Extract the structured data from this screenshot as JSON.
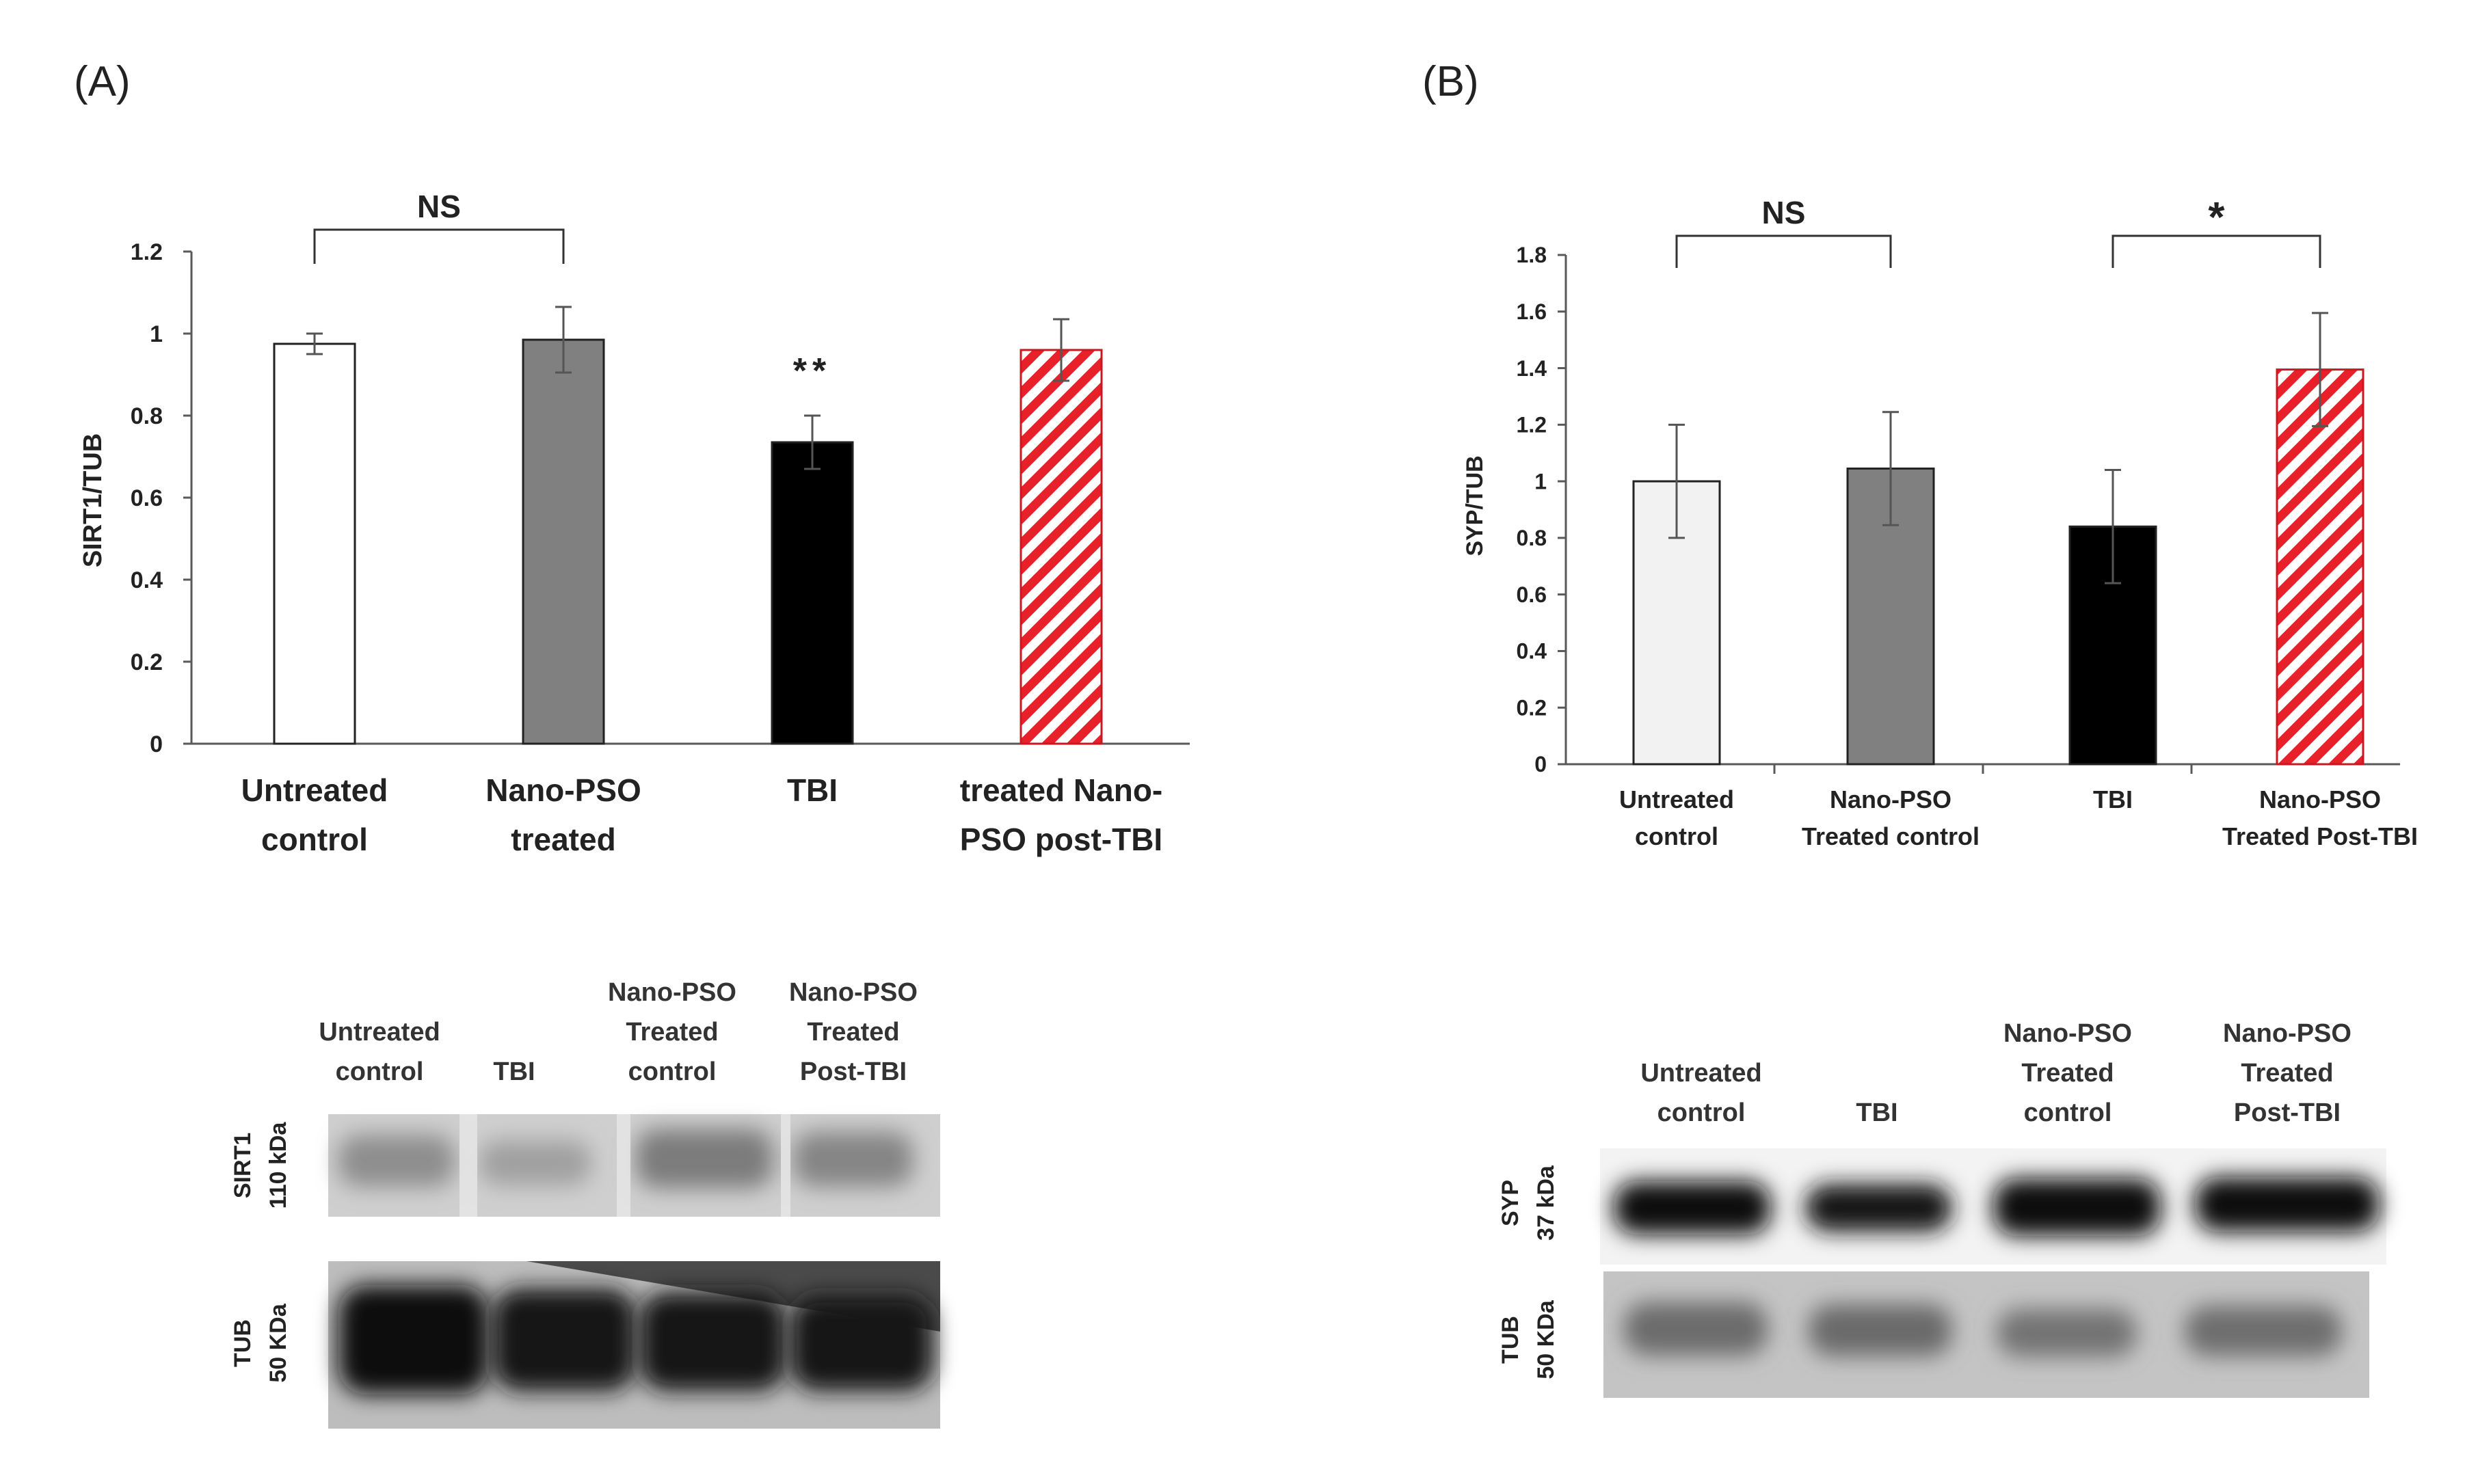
{
  "chart_data": [
    {
      "panel_label": "(A)",
      "type": "bar",
      "ylabel": "SIRT1/TUB",
      "ylim": [
        0,
        1.2
      ],
      "y_ticks": [
        "0",
        "0.2",
        "0.4",
        "0.6",
        "0.8",
        "1",
        "1.2"
      ],
      "categories": [
        [
          "Untreated",
          "control"
        ],
        [
          "Nano-PSO",
          "treated"
        ],
        [
          "TBI"
        ],
        [
          "treated Nano-",
          "PSO post-TBI"
        ]
      ],
      "values": [
        0.975,
        0.985,
        0.735,
        0.96
      ],
      "errors": [
        0.025,
        0.08,
        0.065,
        0.075
      ],
      "bar_styles": [
        "white",
        "gray",
        "black",
        "red-hatch"
      ],
      "annotations": [
        {
          "text": "NS",
          "type": "bracket",
          "from": 0,
          "to": 1
        },
        {
          "text": "**",
          "type": "above",
          "at": 2
        }
      ],
      "blot": {
        "lane_labels": [
          [
            "Untreated",
            "control"
          ],
          [
            "TBI"
          ],
          [
            "Nano-PSO",
            "Treated",
            "control"
          ],
          [
            "Nano-PSO",
            "Treated",
            "Post-TBI"
          ]
        ],
        "rows": [
          {
            "protein": "SIRT1",
            "size": "110 kDa"
          },
          {
            "protein": "TUB",
            "size": "50 KDa"
          }
        ]
      }
    },
    {
      "panel_label": "(B)",
      "type": "bar",
      "ylabel": "SYP/TUB",
      "ylim": [
        0,
        1.8
      ],
      "y_ticks": [
        "0",
        "0.2",
        "0.4",
        "0.6",
        "0.8",
        "1",
        "1.2",
        "1.4",
        "1.6",
        "1.8"
      ],
      "categories": [
        [
          "Untreated",
          "control"
        ],
        [
          "Nano-PSO",
          "Treated control"
        ],
        [
          "TBI"
        ],
        [
          "Nano-PSO",
          "Treated Post-TBI"
        ]
      ],
      "values": [
        1.0,
        1.045,
        0.84,
        1.395
      ],
      "errors": [
        0.2,
        0.2,
        0.2,
        0.2
      ],
      "bar_styles": [
        "lightgray",
        "gray",
        "black",
        "red-hatch"
      ],
      "annotations": [
        {
          "text": "NS",
          "type": "bracket",
          "from": 0,
          "to": 1
        },
        {
          "text": "*",
          "type": "bracket",
          "from": 2,
          "to": 3
        }
      ],
      "blot": {
        "lane_labels": [
          [
            "Untreated",
            "control"
          ],
          [
            "TBI"
          ],
          [
            "Nano-PSO",
            "Treated",
            "control"
          ],
          [
            "Nano-PSO",
            "Treated",
            "Post-TBI"
          ]
        ],
        "rows": [
          {
            "protein": "SYP",
            "size": "37 kDa"
          },
          {
            "protein": "TUB",
            "size": "50 KDa"
          }
        ]
      }
    }
  ],
  "colors": {
    "white_bar": "#ffffff",
    "lightgray_bar": "#f2f2f2",
    "gray_bar": "#808080",
    "black_bar": "#000000",
    "hatch_red": "#e8202a",
    "axis": "#595959",
    "text": "#222222"
  }
}
